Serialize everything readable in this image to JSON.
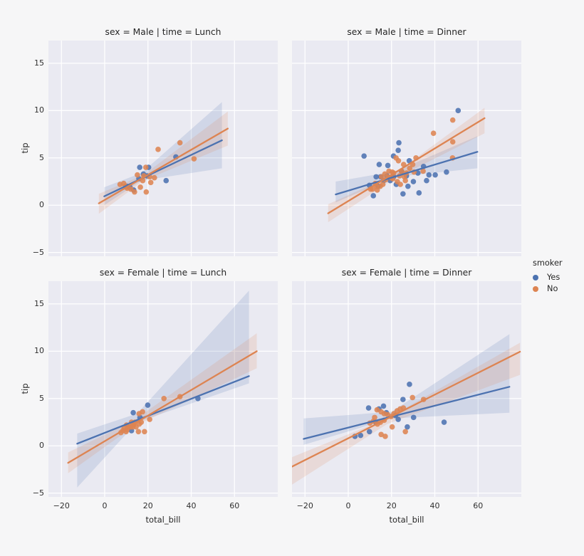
{
  "figure": {
    "background": "#f6f6f7",
    "axes_background": "#eaeaf2",
    "grid_color": "#ffffff",
    "text_color": "#262626"
  },
  "colors": {
    "yes": "#4c72b0",
    "no": "#dd8452"
  },
  "axis": {
    "xlabel": "total_bill",
    "ylabel": "tip"
  },
  "legend": {
    "title": "smoker",
    "items": [
      {
        "label": "Yes",
        "color_key": "yes"
      },
      {
        "label": "No",
        "color_key": "no"
      }
    ]
  },
  "chart_data": {
    "type": "scatter",
    "title": "",
    "x_var": "total_bill",
    "y_var": "tip",
    "row_var": "sex",
    "col_var": "time",
    "hue_var": "smoker",
    "xlim": [
      -26,
      80
    ],
    "ylim": [
      -5.4,
      17.4
    ],
    "xticks": [
      -20,
      0,
      20,
      40,
      60
    ],
    "yticks": [
      -5,
      0,
      5,
      10,
      15
    ],
    "grid": true,
    "legend_position": "right",
    "facets": [
      {
        "id": "male-lunch",
        "title": "sex = Male | time = Lunch",
        "row": 0,
        "col": 0,
        "series": [
          {
            "name": "Yes",
            "color_key": "yes",
            "points": [
              [
                13.4,
                1.6
              ],
              [
                10.3,
                2.0
              ],
              [
                16.2,
                4.0
              ],
              [
                20.3,
                4.0
              ],
              [
                28.4,
                2.6
              ],
              [
                32.9,
                5.1
              ],
              [
                11.7,
                1.9
              ],
              [
                19.6,
                3.1
              ],
              [
                15.8,
                2.8
              ],
              [
                17.9,
                3.3
              ]
            ],
            "reg_line": [
              [
                -0.2,
                0.94
              ],
              [
                54.2,
                6.86
              ]
            ],
            "ci_band": [
              [
                -0.2,
                1.9
              ],
              [
                17,
                3.4
              ],
              [
                54.2,
                10.9
              ],
              [
                54.2,
                3.9
              ],
              [
                17,
                2.6
              ],
              [
                -0.2,
                0.0
              ]
            ]
          },
          {
            "name": "No",
            "color_key": "no",
            "points": [
              [
                34.8,
                6.6
              ],
              [
                24.7,
                5.9
              ],
              [
                41.3,
                4.9
              ],
              [
                19.0,
                4.0
              ],
              [
                15.1,
                3.2
              ],
              [
                18.1,
                3.1
              ],
              [
                20.8,
                3.0
              ],
              [
                23.0,
                2.9
              ],
              [
                8.8,
                2.3
              ],
              [
                7.1,
                2.2
              ],
              [
                10.4,
                1.8
              ],
              [
                12.1,
                1.7
              ],
              [
                13.8,
                1.4
              ],
              [
                19.2,
                1.4
              ],
              [
                16.5,
                1.9
              ],
              [
                17.6,
                2.6
              ],
              [
                21.3,
                2.4
              ],
              [
                9.6,
                2.0
              ]
            ],
            "reg_line": [
              [
                -2.7,
                0.2
              ],
              [
                56.9,
                8.1
              ]
            ],
            "ci_band": [
              [
                -2.7,
                1.2
              ],
              [
                18,
                3.2
              ],
              [
                56.9,
                9.9
              ],
              [
                56.9,
                6.3
              ],
              [
                18,
                2.6
              ],
              [
                -2.7,
                -0.9
              ]
            ]
          }
        ]
      },
      {
        "id": "male-dinner",
        "title": "sex = Male | time = Dinner",
        "row": 0,
        "col": 1,
        "series": [
          {
            "name": "Yes",
            "color_key": "yes",
            "points": [
              [
                50.8,
                10.0
              ],
              [
                45.4,
                3.5
              ],
              [
                40.2,
                3.2
              ],
              [
                37.3,
                3.2
              ],
              [
                34.8,
                4.1
              ],
              [
                32.2,
                3.4
              ],
              [
                32.7,
                1.3
              ],
              [
                23.4,
                6.6
              ],
              [
                23.1,
                5.8
              ],
              [
                20.9,
                5.2
              ],
              [
                7.3,
                5.2
              ],
              [
                11.6,
                1.0
              ],
              [
                13.8,
                2.0
              ],
              [
                15.0,
                3.0
              ],
              [
                16.4,
                2.6
              ],
              [
                17.9,
                3.1
              ],
              [
                19.4,
                2.6
              ],
              [
                21.0,
                3.0
              ],
              [
                22.2,
                2.2
              ],
              [
                24.6,
                3.6
              ],
              [
                26.9,
                3.1
              ],
              [
                28.2,
                4.7
              ],
              [
                30.1,
                2.5
              ],
              [
                25.3,
                1.2
              ],
              [
                18.3,
                4.2
              ],
              [
                14.3,
                4.3
              ],
              [
                9.8,
                2.1
              ],
              [
                36.2,
                2.6
              ],
              [
                27.6,
                2.0
              ],
              [
                12.9,
                3.0
              ]
            ],
            "reg_line": [
              [
                -5.8,
                1.14
              ],
              [
                59.7,
                5.64
              ]
            ],
            "ci_band": [
              [
                -5.8,
                2.5
              ],
              [
                22,
                3.6
              ],
              [
                59.7,
                7.3
              ],
              [
                59.7,
                3.9
              ],
              [
                22,
                3.0
              ],
              [
                -5.8,
                0.3
              ]
            ]
          },
          {
            "name": "No",
            "color_key": "no",
            "points": [
              [
                48.3,
                9.0
              ],
              [
                48.3,
                6.7
              ],
              [
                48.2,
                5.0
              ],
              [
                39.4,
                7.6
              ],
              [
                31.3,
                5.0
              ],
              [
                29.8,
                4.3
              ],
              [
                28.4,
                3.9
              ],
              [
                26.9,
                3.4
              ],
              [
                25.6,
                4.3
              ],
              [
                24.7,
                3.6
              ],
              [
                23.7,
                3.1
              ],
              [
                21.0,
                3.4
              ],
              [
                20.3,
                3.5
              ],
              [
                19.8,
                2.9
              ],
              [
                18.4,
                3.0
              ],
              [
                17.3,
                2.7
              ],
              [
                16.0,
                2.2
              ],
              [
                15.4,
                3.0
              ],
              [
                14.8,
                2.0
              ],
              [
                13.4,
                1.6
              ],
              [
                12.5,
                2.3
              ],
              [
                11.2,
                1.7
              ],
              [
                10.3,
                1.7
              ],
              [
                22.7,
                2.5
              ],
              [
                24.1,
                2.2
              ],
              [
                26.4,
                2.6
              ],
              [
                30.4,
                3.5
              ],
              [
                23.2,
                4.7
              ],
              [
                22.1,
                5.0
              ],
              [
                34.6,
                3.6
              ],
              [
                16.9,
                3.3
              ],
              [
                18.8,
                3.6
              ],
              [
                20.6,
                2.8
              ],
              [
                13.0,
                2.0
              ],
              [
                25.9,
                3.0
              ]
            ],
            "reg_line": [
              [
                -9.3,
                -0.86
              ],
              [
                63,
                9.2
              ]
            ],
            "ci_band": [
              [
                -9.3,
                0.1
              ],
              [
                20,
                3.1
              ],
              [
                63,
                10.3
              ],
              [
                63,
                7.6
              ],
              [
                20,
                2.6
              ],
              [
                -9.3,
                -1.8
              ]
            ]
          }
        ]
      },
      {
        "id": "female-lunch",
        "title": "sex = Female | time = Lunch",
        "row": 1,
        "col": 0,
        "series": [
          {
            "name": "Yes",
            "color_key": "yes",
            "points": [
              [
                43.1,
                5.0
              ],
              [
                19.9,
                4.3
              ],
              [
                13.2,
                3.5
              ],
              [
                16.3,
                3.0
              ],
              [
                10.7,
                2.0
              ],
              [
                12.4,
                1.6
              ]
            ],
            "reg_line": [
              [
                -12.7,
                0.23
              ],
              [
                66.7,
                7.37
              ]
            ],
            "ci_band": [
              [
                -12.7,
                1.3
              ],
              [
                15,
                3.4
              ],
              [
                66.7,
                16.4
              ],
              [
                66.7,
                6.6
              ],
              [
                15,
                2.5
              ],
              [
                -12.7,
                -4.4
              ]
            ]
          },
          {
            "name": "No",
            "color_key": "no",
            "points": [
              [
                34.8,
                5.2
              ],
              [
                27.4,
                5.0
              ],
              [
                17.5,
                3.6
              ],
              [
                15.9,
                3.4
              ],
              [
                20.8,
                2.8
              ],
              [
                18.4,
                1.5
              ],
              [
                15.6,
                1.5
              ],
              [
                7.5,
                1.4
              ],
              [
                8.4,
                1.6
              ],
              [
                9.9,
                1.5
              ],
              [
                10.3,
                1.7
              ],
              [
                11.2,
                2.0
              ],
              [
                12.0,
                2.0
              ],
              [
                12.4,
                2.5
              ],
              [
                13.0,
                2.0
              ],
              [
                13.4,
                2.2
              ],
              [
                14.5,
                2.0
              ],
              [
                16.0,
                2.3
              ],
              [
                16.9,
                2.5
              ],
              [
                14.0,
                2.5
              ],
              [
                10.1,
                2.2
              ],
              [
                9.0,
                1.9
              ]
            ],
            "reg_line": [
              [
                -16.9,
                -1.8
              ],
              [
                70.3,
                10.0
              ]
            ],
            "ci_band": [
              [
                -16.9,
                -0.7
              ],
              [
                13,
                2.6
              ],
              [
                70.3,
                11.9
              ],
              [
                70.3,
                8.2
              ],
              [
                13,
                2.0
              ],
              [
                -16.9,
                -2.9
              ]
            ]
          }
        ]
      },
      {
        "id": "female-dinner",
        "title": "sex = Female | time = Dinner",
        "row": 1,
        "col": 1,
        "series": [
          {
            "name": "Yes",
            "color_key": "yes",
            "points": [
              [
                44.3,
                2.5
              ],
              [
                28.3,
                6.5
              ],
              [
                25.3,
                4.9
              ],
              [
                16.3,
                4.2
              ],
              [
                9.4,
                4.0
              ],
              [
                14.2,
                3.9
              ],
              [
                30.2,
                3.0
              ],
              [
                27.3,
                2.0
              ],
              [
                9.8,
                1.5
              ],
              [
                3.1,
                1.0
              ],
              [
                5.7,
                1.1
              ],
              [
                21.8,
                3.2
              ],
              [
                23.1,
                2.8
              ],
              [
                17.6,
                3.5
              ],
              [
                12.7,
                2.5
              ]
            ],
            "reg_line": [
              [
                -20.6,
                0.73
              ],
              [
                74.5,
                6.24
              ]
            ],
            "ci_band": [
              [
                -20.6,
                2.9
              ],
              [
                20,
                3.6
              ],
              [
                74.5,
                11.8
              ],
              [
                74.5,
                3.5
              ],
              [
                20,
                2.9
              ],
              [
                -20.6,
                0.1
              ]
            ]
          },
          {
            "name": "No",
            "color_key": "no",
            "points": [
              [
                29.7,
                5.1
              ],
              [
                34.8,
                4.9
              ],
              [
                13.3,
                3.8
              ],
              [
                15.2,
                3.6
              ],
              [
                16.6,
                3.4
              ],
              [
                18.2,
                3.3
              ],
              [
                19.8,
                3.1
              ],
              [
                21.1,
                3.4
              ],
              [
                22.6,
                3.7
              ],
              [
                24.0,
                3.9
              ],
              [
                25.5,
                4.0
              ],
              [
                16.6,
                2.7
              ],
              [
                14.9,
                2.5
              ],
              [
                13.5,
                2.3
              ],
              [
                11.6,
                2.6
              ],
              [
                10.0,
                2.4
              ],
              [
                17.1,
                1.0
              ],
              [
                15.2,
                1.2
              ],
              [
                26.4,
                1.5
              ],
              [
                12.2,
                3.0
              ],
              [
                20.3,
                2.0
              ]
            ],
            "reg_line": [
              [
                -26,
                -2.2
              ],
              [
                79.4,
                9.95
              ]
            ],
            "ci_band": [
              [
                -26,
                -1.2
              ],
              [
                18,
                2.9
              ],
              [
                79.4,
                10.9
              ],
              [
                79.4,
                7.5
              ],
              [
                18,
                2.3
              ],
              [
                -26,
                -4.1
              ]
            ]
          }
        ]
      }
    ]
  }
}
